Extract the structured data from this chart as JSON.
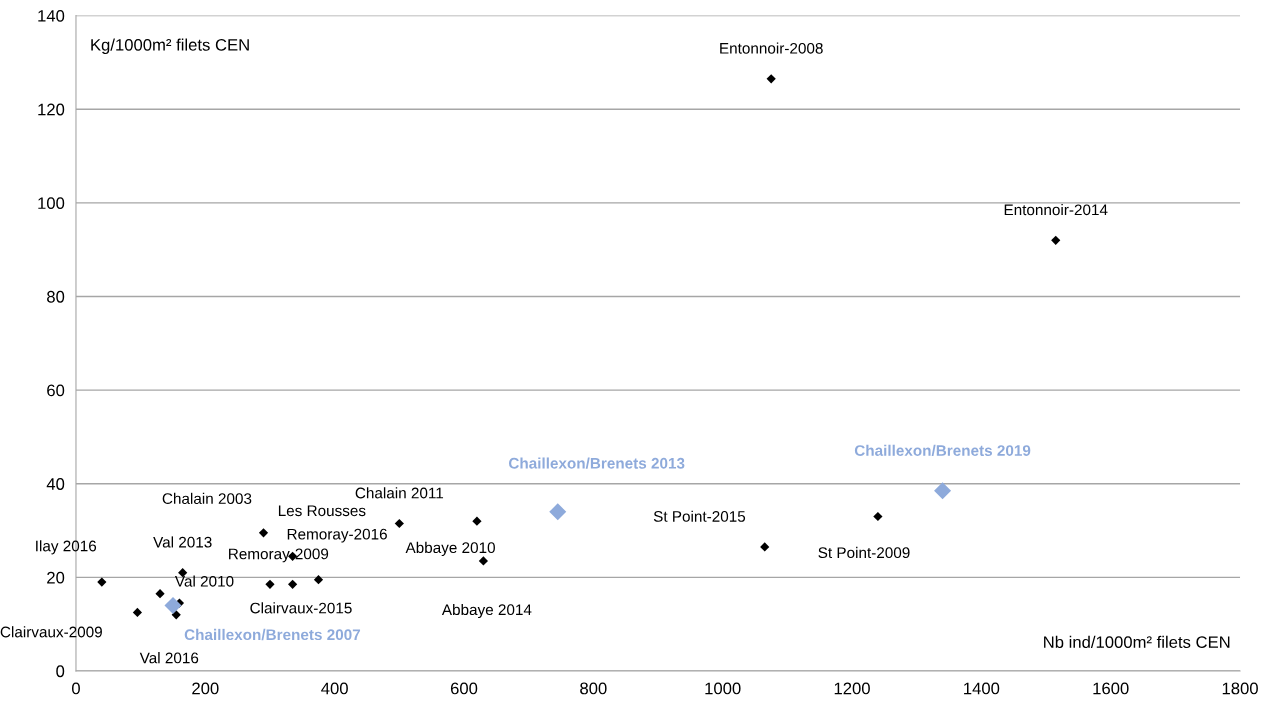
{
  "chart_data": {
    "type": "scatter",
    "xlabel": "Nb ind/1000m² filets CEN",
    "ylabel": "Kg/1000m² filets CEN",
    "xlim": [
      0,
      1800
    ],
    "xticks": [
      0,
      200,
      400,
      600,
      800,
      1000,
      1200,
      1400,
      1600,
      1800
    ],
    "ylim": [
      0,
      140
    ],
    "yticks": [
      0,
      20,
      40,
      60,
      80,
      100,
      120,
      140
    ],
    "grid": "y",
    "marker": "diamond",
    "series": [
      {
        "color": "#000000",
        "x": [
          1075,
          1515,
          1065,
          1240,
          620,
          630,
          500,
          290,
          335,
          300,
          335,
          375,
          165,
          130,
          155,
          95,
          40,
          160
        ],
        "values": [
          126.5,
          92,
          26.5,
          33,
          32,
          23.5,
          31.5,
          29.5,
          24.5,
          18.5,
          18.5,
          19.5,
          21,
          16.5,
          12,
          12.5,
          19,
          14.5
        ]
      },
      {
        "color": "#8eaadb",
        "x": [
          1340,
          745,
          150
        ],
        "values": [
          38.5,
          34,
          14
        ]
      }
    ],
    "annotations": [
      {
        "text": "Entonnoir-2008",
        "x": 1075,
        "y": 126.5
      },
      {
        "text": "Entonnoir-2014",
        "x": 1515,
        "y": 92
      },
      {
        "text": "Chaillexon/Brenets 2019",
        "x": 1340,
        "y": 38.5
      },
      {
        "text": "Chaillexon/Brenets 2013",
        "x": 745,
        "y": 34
      },
      {
        "text": "Chaillexon/Brenets 2007",
        "x": 150,
        "y": 14
      },
      {
        "text": "St Point-2015",
        "x": 1065,
        "y": 26.5
      },
      {
        "text": "St Point-2009",
        "x": 1240,
        "y": 33
      },
      {
        "text": "Abbaye 2010",
        "x": 620,
        "y": 32
      },
      "Abbaye 2014",
      {
        "text": "Chalain 2011",
        "x": 500,
        "y": 31.5
      },
      {
        "text": "Les Rousses",
        "x": 290,
        "y": 29.5
      },
      {
        "text": "Remoray-2016",
        "x": 335,
        "y": 24.5
      },
      {
        "text": "Remoray-2009",
        "x": 300,
        "y": 18.5
      },
      {
        "text": "Clairvaux-2015",
        "x": 335,
        "y": 18.5
      },
      "Chalain 2003",
      {
        "text": "Val 2013",
        "x": 165,
        "y": 21
      },
      {
        "text": "Val 2010",
        "x": 130,
        "y": 16.5
      },
      {
        "text": "Val 2016",
        "x": 155,
        "y": 12
      },
      {
        "text": "Clairvaux-2009",
        "x": 95,
        "y": 12.5
      },
      {
        "text": "Ilay 2016",
        "x": 40,
        "y": 19
      }
    ]
  }
}
